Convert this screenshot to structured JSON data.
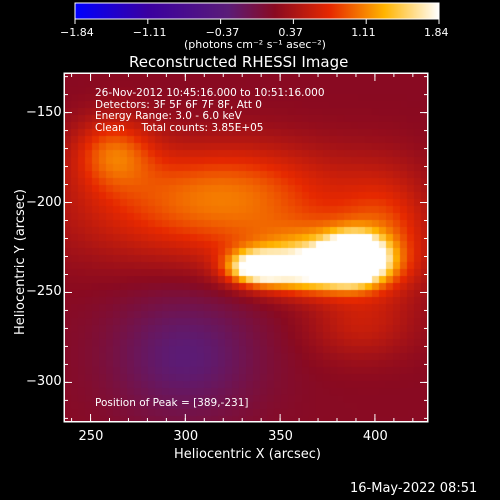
{
  "chart_data": {
    "type": "heatmap",
    "title": "Reconstructed RHESSI Image",
    "xlabel": "Heliocentric X (arcsec)",
    "ylabel": "Heliocentric Y (arcsec)",
    "xlim": [
      236,
      428
    ],
    "ylim": [
      -322,
      -128
    ],
    "x_ticks": [
      250,
      300,
      350,
      400
    ],
    "y_ticks": [
      -150,
      -200,
      -250,
      -300
    ],
    "colorbar": {
      "ticks": [
        "-1.84",
        "-1.11",
        "-0.37",
        "0.37",
        "1.11",
        "1.84"
      ],
      "min": -1.84,
      "max": 1.84,
      "units_label": "(photons cm⁻² s⁻¹ asec⁻²)",
      "colormap": "blue-purple-red-yellow-white"
    },
    "info_lines": [
      "26-Nov-2012 10:45:16.000 to 10:51:16.000",
      "Detectors: 3F 5F 6F 7F 8F, Att 0",
      "Energy Range: 3.0 - 6.0 keV",
      "Clean     Total counts: 3.85E+05"
    ],
    "peak_text": "Position of Peak = [389,-231]",
    "peak": {
      "x": 389,
      "y": -231,
      "value": 1.84
    },
    "sources": [
      {
        "x": 389,
        "y": -231,
        "amp": 2.3,
        "sx": 10,
        "sy": 8
      },
      {
        "x": 380,
        "y": -235,
        "amp": 1.15,
        "sx": 20,
        "sy": 10
      },
      {
        "x": 337,
        "y": -236,
        "amp": 1.4,
        "sx": 10,
        "sy": 6
      },
      {
        "x": 355,
        "y": -238,
        "amp": 0.9,
        "sx": 18,
        "sy": 8
      },
      {
        "x": 365,
        "y": -225,
        "amp": 0.5,
        "sx": 30,
        "sy": 14
      },
      {
        "x": 300,
        "y": -205,
        "amp": 0.55,
        "sx": 48,
        "sy": 22
      },
      {
        "x": 262,
        "y": -172,
        "amp": 0.7,
        "sx": 15,
        "sy": 14
      },
      {
        "x": 330,
        "y": -190,
        "amp": 0.45,
        "sx": 40,
        "sy": 18
      },
      {
        "x": 405,
        "y": -215,
        "amp": 0.55,
        "sx": 18,
        "sy": 24
      },
      {
        "x": 392,
        "y": -268,
        "amp": 0.35,
        "sx": 20,
        "sy": 14
      },
      {
        "x": 300,
        "y": -285,
        "amp": -0.45,
        "sx": 28,
        "sy": 26
      }
    ],
    "background": 0.17
  },
  "timestamp": "16-May-2022 08:51"
}
